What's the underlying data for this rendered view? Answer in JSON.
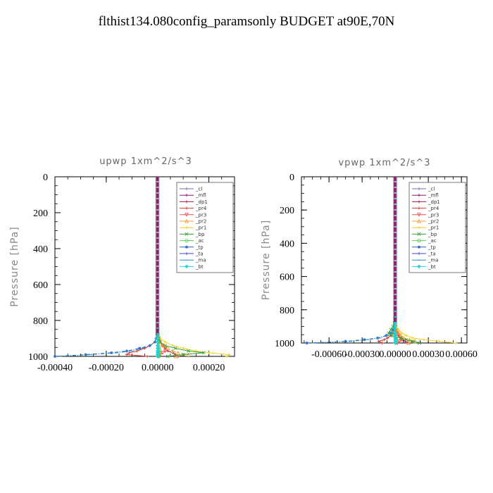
{
  "title": "flthist134.080config_paramsonly  BUDGET at90E,70N",
  "chart_data": [
    {
      "type": "line",
      "title": "upwp   1xm^2/s^3",
      "ylabel": "Pressure [hPa]",
      "xlabel": "",
      "xlim": [
        -0.0004,
        0.0003
      ],
      "ylim": [
        1000,
        0
      ],
      "y_inverted": true,
      "xticks": [
        -0.0004,
        -0.0002,
        0.0,
        0.0002
      ],
      "xtick_labels": [
        "-0.00040",
        "-0.00020",
        "0.00000",
        "0.00020"
      ],
      "yticks": [
        0,
        200,
        400,
        600,
        800,
        1000
      ],
      "ytick_labels": [
        "0",
        "200",
        "400",
        "600",
        "800",
        "1000"
      ],
      "legend_position": "top-right",
      "pressure_levels": [
        0,
        100,
        200,
        300,
        400,
        500,
        600,
        700,
        800,
        850,
        880,
        900,
        920,
        940,
        955,
        970,
        980,
        990,
        1000
      ],
      "series": [
        {
          "name": "_cl",
          "color": "#7b6bb0",
          "marker": "+",
          "values": [
            0,
            0,
            0,
            0,
            0,
            0,
            0,
            0,
            0,
            0,
            0,
            0,
            2e-06,
            4e-06,
            6e-06,
            8e-06,
            6e-06,
            4e-06,
            2e-06
          ]
        },
        {
          "name": "_mfl",
          "color": "#8b1a6b",
          "marker": "+",
          "values": [
            0,
            0,
            0,
            0,
            0,
            0,
            0,
            0,
            0,
            0,
            0,
            0,
            0,
            0,
            0,
            0,
            0,
            0,
            0
          ]
        },
        {
          "name": "_dp1",
          "color": "#a0184a",
          "marker": "+",
          "values": [
            0,
            0,
            0,
            0,
            0,
            0,
            0,
            0,
            0,
            0,
            0,
            0,
            1e-05,
            2e-05,
            3e-05,
            4e-05,
            6e-05,
            7e-05,
            8e-05
          ]
        },
        {
          "name": "_pr4",
          "color": "#e03030",
          "marker": "+",
          "values": [
            0,
            0,
            0,
            0,
            0,
            0,
            0,
            0,
            0,
            0,
            -2e-06,
            -5e-06,
            -1e-05,
            -3e-05,
            -5e-05,
            -8e-05,
            -0.00011,
            -0.00012,
            -4e-05
          ]
        },
        {
          "name": "_pr3",
          "color": "#f05050",
          "marker": "v",
          "values": [
            0,
            0,
            0,
            0,
            0,
            0,
            0,
            0,
            0,
            0,
            0,
            3e-06,
            8e-06,
            2e-05,
            3e-05,
            3e-05,
            2e-05,
            1e-05,
            5e-06
          ]
        },
        {
          "name": "_pr2",
          "color": "#f0a030",
          "marker": "^",
          "values": [
            0,
            0,
            0,
            0,
            0,
            0,
            0,
            0,
            0,
            0,
            0,
            5e-06,
            1e-05,
            2e-05,
            4e-05,
            6e-05,
            8e-05,
            0.00012,
            7e-05
          ]
        },
        {
          "name": "_pr1",
          "color": "#f0d020",
          "marker": "+",
          "values": [
            0,
            0,
            0,
            0,
            0,
            0,
            0,
            0,
            0,
            2e-06,
            5e-06,
            1e-05,
            3e-05,
            6e-05,
            0.0001,
            0.00015,
            0.0002,
            0.00028,
            0.00027
          ]
        },
        {
          "name": "_bp",
          "color": "#30a030",
          "marker": "x",
          "values": [
            0,
            0,
            0,
            0,
            0,
            0,
            0,
            0,
            0,
            0,
            2e-06,
            5e-06,
            1e-05,
            3e-05,
            7e-05,
            0.00012,
            0.00018,
            0.0001,
            4e-05
          ]
        },
        {
          "name": "_ac",
          "color": "#50d050",
          "marker": "o",
          "values": [
            0,
            0,
            0,
            0,
            0,
            0,
            0,
            0,
            0,
            0,
            0,
            0,
            2e-06,
            4e-06,
            6e-06,
            8e-06,
            1e-05,
            8e-06,
            5e-06
          ]
        },
        {
          "name": "_tp",
          "color": "#2060c0",
          "marker": "*",
          "values": [
            0,
            0,
            0,
            0,
            0,
            0,
            0,
            0,
            0,
            0,
            -2e-06,
            -5e-06,
            -1e-05,
            -3e-05,
            -7e-05,
            -0.00012,
            -0.00018,
            -0.00028,
            -0.0004
          ]
        },
        {
          "name": "_ta",
          "color": "#4040d0",
          "marker": "+",
          "values": [
            0,
            0,
            0,
            0,
            0,
            0,
            0,
            0,
            0,
            0,
            0,
            0,
            0,
            0,
            0,
            0,
            0,
            0,
            0
          ]
        },
        {
          "name": "_ma",
          "color": "#2090c0",
          "marker": "-",
          "values": [
            0,
            0,
            0,
            0,
            0,
            0,
            0,
            0,
            0,
            0,
            -2e-06,
            -5e-06,
            -1e-05,
            -3e-05,
            -6e-05,
            -0.0001,
            -0.00016,
            -0.00026,
            -0.00038
          ]
        },
        {
          "name": "_bt",
          "color": "#20d0e0",
          "marker": "D",
          "values": [
            0,
            0,
            0,
            0,
            0,
            0,
            0,
            0,
            0,
            0,
            0,
            0,
            0,
            0,
            0,
            0,
            0,
            0,
            0
          ]
        }
      ]
    },
    {
      "type": "line",
      "title": "vpwp   1xm^2/s^3",
      "ylabel": "Pressure [hPa]",
      "xlabel": "",
      "xlim": [
        -0.00085,
        0.00065
      ],
      "ylim": [
        1000,
        0
      ],
      "y_inverted": true,
      "xticks": [
        -0.0006,
        -0.0003,
        0.0,
        0.0003,
        0.0006
      ],
      "xtick_labels": [
        "-0.00060",
        "-0.00030",
        "0.00000",
        "0.00030",
        "0.00060"
      ],
      "yticks": [
        0,
        200,
        400,
        600,
        800,
        1000
      ],
      "ytick_labels": [
        "0",
        "200",
        "400",
        "600",
        "800",
        "1000"
      ],
      "legend_position": "top-right",
      "pressure_levels": [
        0,
        100,
        200,
        300,
        400,
        500,
        600,
        700,
        800,
        850,
        880,
        900,
        920,
        940,
        955,
        970,
        980,
        990,
        1000
      ],
      "series": [
        {
          "name": "_cl",
          "color": "#7b6bb0",
          "marker": "+",
          "values": [
            0,
            0,
            0,
            0,
            0,
            0,
            0,
            0,
            0,
            0,
            0,
            0,
            3e-06,
            6e-06,
            1e-05,
            1.2e-05,
            1e-05,
            6e-06,
            3e-06
          ]
        },
        {
          "name": "_mfl",
          "color": "#8b1a6b",
          "marker": "+",
          "values": [
            0,
            0,
            0,
            0,
            0,
            0,
            0,
            0,
            0,
            0,
            0,
            0,
            0,
            0,
            0,
            0,
            0,
            0,
            0
          ]
        },
        {
          "name": "_dp1",
          "color": "#a0184a",
          "marker": "+",
          "values": [
            0,
            0,
            0,
            0,
            0,
            0,
            0,
            0,
            0,
            0,
            0,
            0,
            1e-05,
            2e-05,
            3e-05,
            5e-05,
            7e-05,
            9e-05,
            0.00011
          ]
        },
        {
          "name": "_pr4",
          "color": "#e03030",
          "marker": "+",
          "values": [
            0,
            0,
            0,
            0,
            0,
            0,
            0,
            0,
            0,
            0,
            -3e-06,
            -6e-06,
            -1e-05,
            -2e-05,
            -4e-05,
            -7e-05,
            -0.0001,
            -0.00015,
            -0.00012
          ]
        },
        {
          "name": "_pr3",
          "color": "#f05050",
          "marker": "v",
          "values": [
            0,
            0,
            0,
            0,
            0,
            0,
            0,
            0,
            0,
            0,
            0,
            4e-06,
            1e-05,
            2e-05,
            3e-05,
            5e-05,
            6e-05,
            4e-05,
            2e-05
          ]
        },
        {
          "name": "_pr2",
          "color": "#f0a030",
          "marker": "^",
          "values": [
            0,
            0,
            0,
            0,
            0,
            0,
            0,
            0,
            0,
            0,
            0,
            5e-06,
            1e-05,
            3e-05,
            5e-05,
            8e-05,
            0.00013,
            0.00018,
            0.00012
          ]
        },
        {
          "name": "_pr1",
          "color": "#f0d020",
          "marker": "+",
          "values": [
            0,
            0,
            0,
            0,
            0,
            0,
            0,
            0,
            0,
            3e-06,
            6e-06,
            1e-05,
            3e-05,
            6e-05,
            0.0001,
            0.00016,
            0.00026,
            0.0004,
            0.00055
          ]
        },
        {
          "name": "_bp",
          "color": "#30a030",
          "marker": "x",
          "values": [
            0,
            0,
            0,
            0,
            0,
            0,
            0,
            0,
            0,
            -3e-06,
            -8e-06,
            -2e-05,
            -4e-05,
            -6e-05,
            -4e-05,
            5e-05,
            0.0001,
            0.00016,
            0.00022
          ]
        },
        {
          "name": "_ac",
          "color": "#50d050",
          "marker": "o",
          "values": [
            0,
            0,
            0,
            0,
            0,
            0,
            0,
            0,
            0,
            0,
            -2e-06,
            -5e-06,
            -1e-05,
            -1.5e-05,
            -1e-05,
            5e-06,
            1e-05,
            8e-06,
            5e-06
          ]
        },
        {
          "name": "_tp",
          "color": "#2060c0",
          "marker": "*",
          "values": [
            0,
            0,
            0,
            0,
            0,
            0,
            0,
            0,
            0,
            0,
            -3e-06,
            -8e-06,
            -2e-05,
            -4e-05,
            -8e-05,
            -0.00016,
            -0.00028,
            -0.00045,
            -0.0008
          ]
        },
        {
          "name": "_ta",
          "color": "#4040d0",
          "marker": "+",
          "values": [
            0,
            0,
            0,
            0,
            0,
            0,
            0,
            0,
            0,
            0,
            0,
            0,
            0,
            0,
            0,
            0,
            0,
            0,
            0
          ]
        },
        {
          "name": "_ma",
          "color": "#2090c0",
          "marker": "-",
          "values": [
            0,
            0,
            0,
            0,
            0,
            0,
            0,
            0,
            0,
            0,
            -3e-06,
            -7e-06,
            -2e-05,
            -4e-05,
            -7e-05,
            -0.00014,
            -0.00025,
            -0.0004,
            -0.00075
          ]
        },
        {
          "name": "_bt",
          "color": "#20d0e0",
          "marker": "D",
          "values": [
            0,
            0,
            0,
            0,
            0,
            0,
            0,
            0,
            0,
            0,
            0,
            0,
            0,
            0,
            0,
            0,
            0,
            0,
            0
          ]
        }
      ]
    }
  ]
}
